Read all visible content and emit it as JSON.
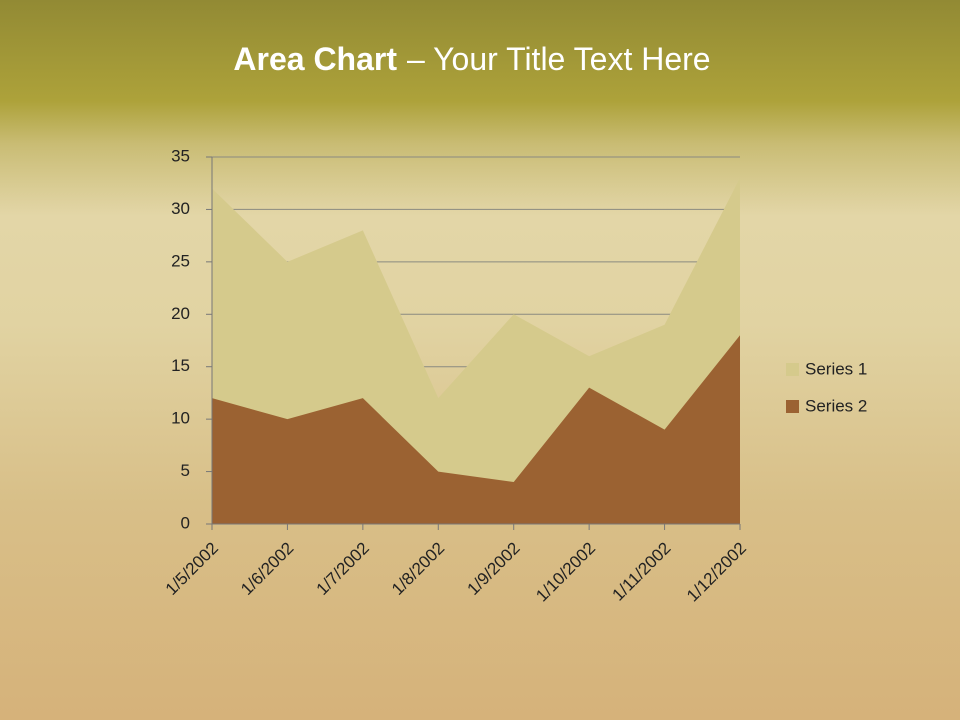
{
  "chart_data": {
    "type": "area",
    "title": {
      "bold": "Area Chart",
      "rest": "– Your Title Text Here"
    },
    "categories": [
      "1/5/2002",
      "1/6/2002",
      "1/7/2002",
      "1/8/2002",
      "1/9/2002",
      "1/10/2002",
      "1/11/2002",
      "1/12/2002"
    ],
    "series": [
      {
        "name": "Series 1",
        "color": "#d5ca8c",
        "values": [
          32,
          25,
          28,
          12,
          20,
          16,
          19,
          33
        ]
      },
      {
        "name": "Series 2",
        "color": "#9b6232",
        "values": [
          12,
          10,
          12,
          5,
          4,
          13,
          9,
          18
        ]
      }
    ],
    "ylim": [
      0,
      35
    ],
    "yticks": [
      0,
      5,
      10,
      15,
      20,
      25,
      30,
      35
    ],
    "grid": true,
    "legend": "right"
  }
}
